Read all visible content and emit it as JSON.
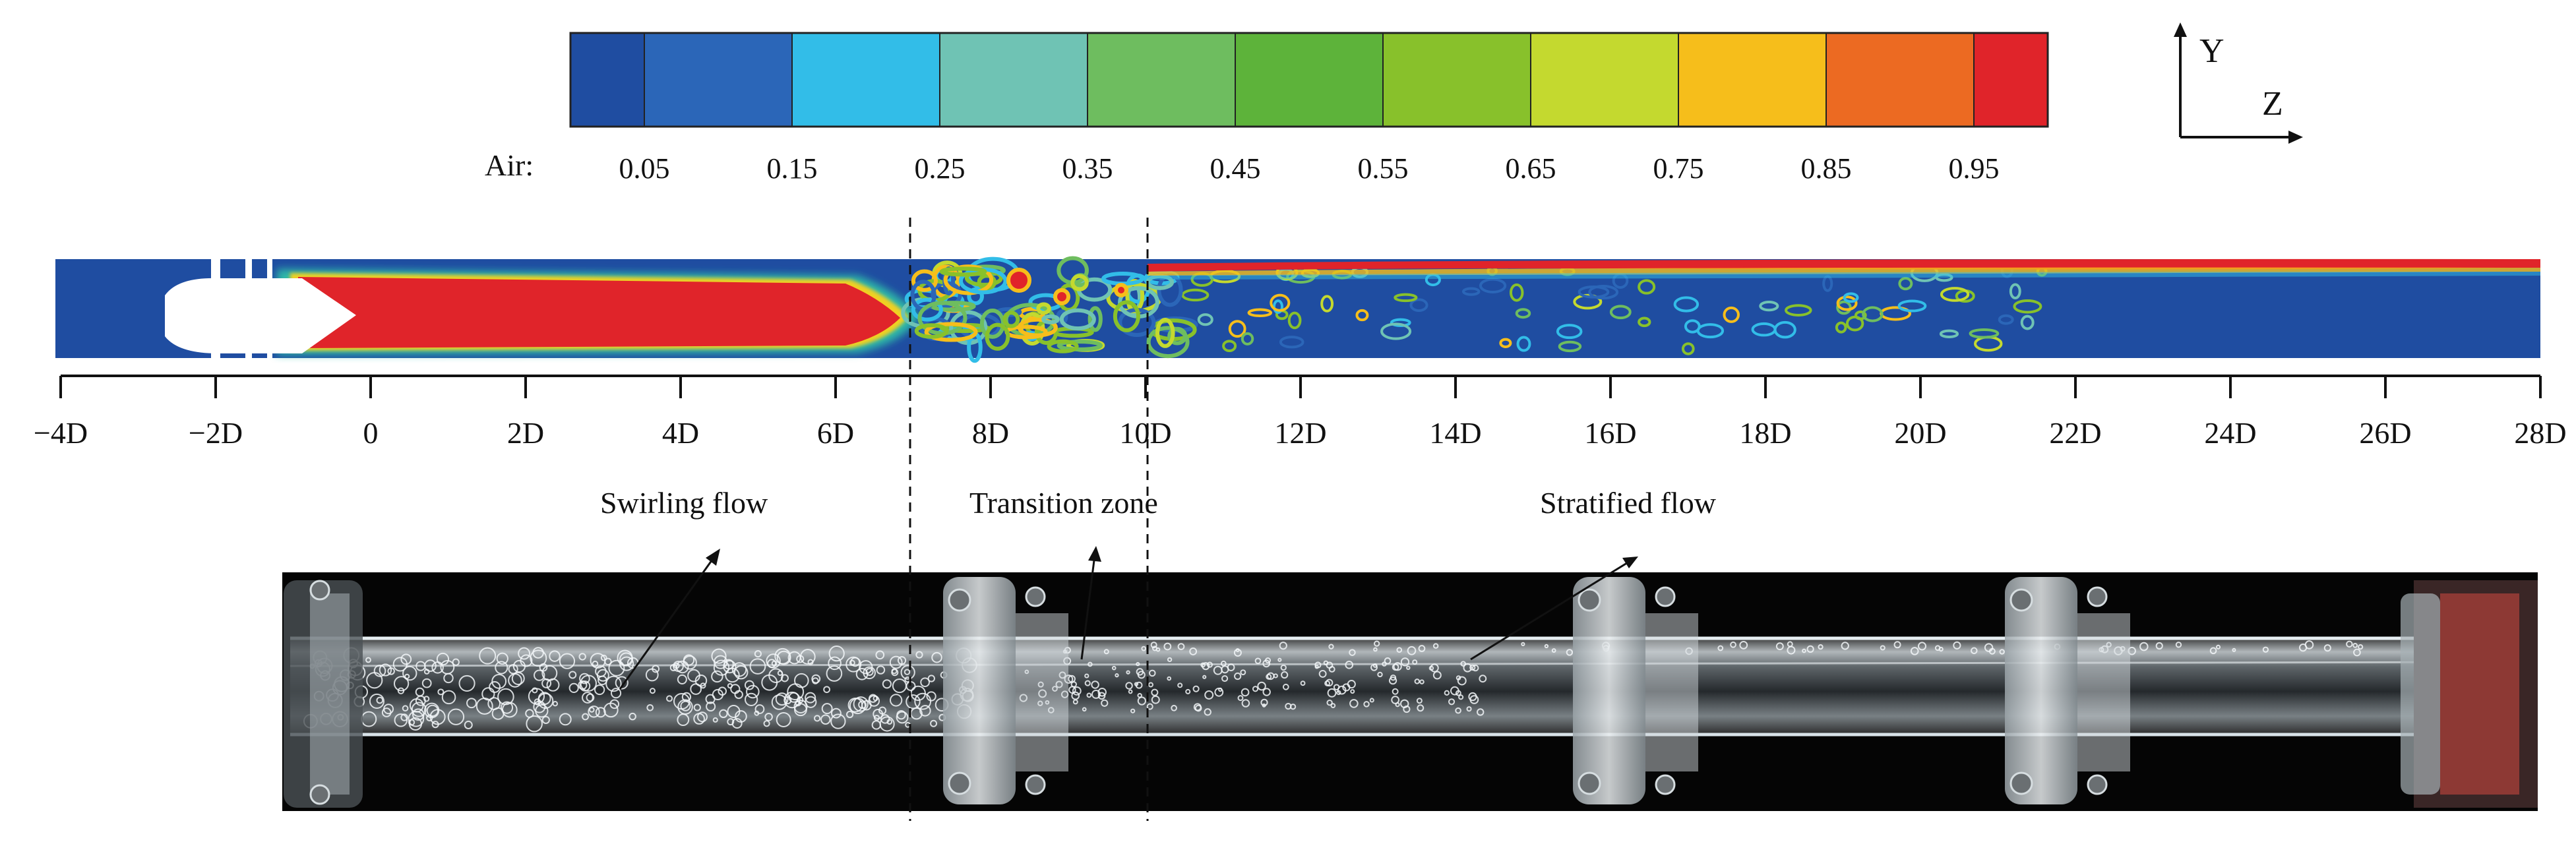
{
  "colorbar": {
    "label": "Air:",
    "ticks": [
      "0.05",
      "0.15",
      "0.25",
      "0.35",
      "0.45",
      "0.55",
      "0.65",
      "0.75",
      "0.85",
      "0.95"
    ],
    "colors": [
      "#1f4da1",
      "#2b66b8",
      "#32bde8",
      "#6fc3b4",
      "#6ebd5f",
      "#5db33a",
      "#88c12b",
      "#c4d92f",
      "#f6be1b",
      "#ec6a22",
      "#e0242a"
    ]
  },
  "coord_axes": {
    "y_label": "Y",
    "z_label": "Z"
  },
  "axis_ticks": [
    "−4D",
    "−2D",
    "0",
    "2D",
    "4D",
    "6D",
    "8D",
    "10D",
    "12D",
    "14D",
    "16D",
    "18D",
    "20D",
    "22D",
    "24D",
    "26D",
    "28D"
  ],
  "zones": {
    "swirling": "Swirling flow",
    "transition": "Transition zone",
    "stratified": "Stratified flow"
  }
}
